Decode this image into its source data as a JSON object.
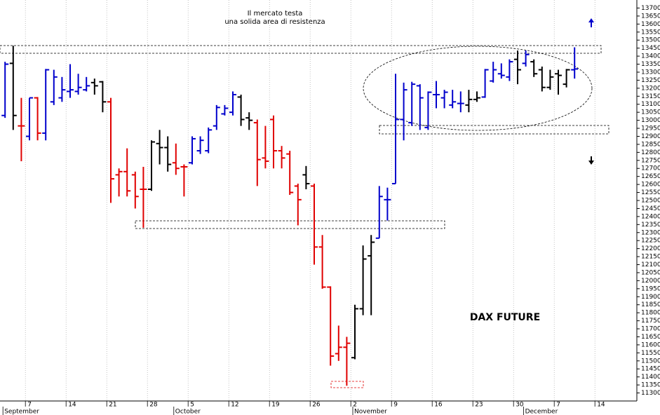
{
  "chart_data": {
    "type": "ohlc",
    "title": "Il mercato testa",
    "subtitle": "una solida area di resistenza",
    "annotations": [
      "DAX FUTURE"
    ],
    "categories": [
      null,
      null,
      null,
      "7",
      null,
      null,
      null,
      null,
      "14",
      null,
      null,
      null,
      null,
      "21",
      null,
      null,
      null,
      null,
      "28",
      null,
      null,
      null,
      null,
      "5",
      null,
      null,
      null,
      null,
      "12",
      null,
      null,
      null,
      null,
      "19",
      null,
      null,
      null,
      null,
      "26",
      null,
      null,
      null,
      null,
      "2",
      null,
      null,
      null,
      null,
      "9",
      null,
      null,
      null,
      null,
      "16",
      null,
      null,
      null,
      null,
      "23",
      null,
      null,
      null,
      null,
      "30",
      null,
      null,
      null,
      null,
      "7",
      null,
      null,
      null,
      null,
      "14"
    ],
    "months": [
      "September",
      null,
      null,
      null,
      null,
      null,
      null,
      null,
      null,
      null,
      null,
      null,
      null,
      null,
      null,
      null,
      null,
      null,
      null,
      null,
      null,
      "October",
      null,
      null,
      null,
      null,
      null,
      null,
      null,
      null,
      null,
      null,
      null,
      null,
      null,
      null,
      null,
      null,
      null,
      null,
      null,
      null,
      null,
      "November",
      null,
      null,
      null,
      null,
      null,
      null,
      null,
      null,
      null,
      null,
      null,
      null,
      null,
      null,
      null,
      null,
      null,
      null,
      null,
      null,
      "December",
      null,
      null,
      null,
      null,
      null,
      null,
      null,
      null,
      null
    ],
    "open": [
      13030,
      13355,
      12965,
      12900,
      13140,
      12920,
      13115,
      13140,
      13180,
      13180,
      13190,
      13235,
      13240,
      13115,
      12660,
      12680,
      12660,
      12570,
      12570,
      12855,
      12830,
      12735,
      12710,
      12735,
      12810,
      12810,
      12965,
      13040,
      13050,
      13145,
      13015,
      12985,
      12765,
      13005,
      12810,
      12790,
      12590,
      12660,
      12590,
      12210,
      11960,
      11545,
      11585,
      11520,
      11825,
      12155,
      12265,
      12505,
      12605,
      13005,
      12985,
      13215,
      12955,
      13160,
      13140,
      13095,
      13105,
      13095,
      13130,
      13145,
      13245,
      13290,
      13270,
      13380,
      13355,
      13365,
      13315,
      13205,
      13290,
      13225,
      13315,
      null,
      null,
      null
    ],
    "high": [
      13365,
      13465,
      13140,
      13140,
      13145,
      13320,
      13315,
      13270,
      13350,
      13290,
      13270,
      13260,
      13245,
      13140,
      12700,
      12825,
      12680,
      12710,
      12875,
      12940,
      12900,
      12855,
      12725,
      12900,
      12900,
      12955,
      13095,
      13095,
      13180,
      13160,
      13050,
      13005,
      12965,
      13030,
      12840,
      12810,
      12605,
      12715,
      12605,
      12285,
      11965,
      11720,
      11650,
      11850,
      12220,
      12285,
      12590,
      12580,
      13290,
      13235,
      13240,
      13225,
      13180,
      13245,
      13190,
      13190,
      13180,
      13190,
      13180,
      13320,
      13365,
      13355,
      13380,
      13435,
      13435,
      13380,
      13335,
      13315,
      13315,
      13320,
      13455,
      null,
      null,
      null
    ],
    "low": [
      13015,
      12940,
      12745,
      12875,
      12875,
      12875,
      13095,
      13115,
      13140,
      13160,
      13180,
      13160,
      13050,
      12485,
      12525,
      12525,
      12450,
      12330,
      12560,
      12725,
      12680,
      12660,
      12525,
      12725,
      12790,
      12795,
      12940,
      13030,
      13030,
      12965,
      12940,
      12590,
      12700,
      12700,
      12700,
      12535,
      12345,
      12570,
      12100,
      11950,
      11470,
      11500,
      11345,
      11510,
      11785,
      11785,
      12265,
      12375,
      12605,
      12875,
      12965,
      12940,
      12940,
      13075,
      13075,
      13075,
      13050,
      13050,
      13115,
      13140,
      13235,
      13260,
      13245,
      13225,
      13335,
      13270,
      13180,
      13190,
      13160,
      13205,
      13260,
      null,
      null,
      null
    ],
    "close": [
      13350,
      13030,
      12965,
      13140,
      12920,
      13315,
      13270,
      13190,
      13190,
      13205,
      13215,
      13215,
      13115,
      12635,
      12680,
      12560,
      12525,
      12570,
      12865,
      12830,
      12725,
      12700,
      12710,
      12885,
      12875,
      12940,
      13080,
      13075,
      13160,
      13005,
      13000,
      12755,
      12745,
      12810,
      12765,
      12550,
      12505,
      12605,
      12210,
      11960,
      11530,
      11585,
      11610,
      11825,
      12135,
      12240,
      12525,
      12505,
      13005,
      13190,
      13225,
      13140,
      13175,
      13160,
      13175,
      13115,
      13105,
      13130,
      13140,
      13315,
      13315,
      13280,
      13365,
      13315,
      13410,
      13290,
      13205,
      13270,
      13280,
      13315,
      13320,
      null,
      null,
      null
    ],
    "colors": [
      "#0000cc",
      "#000000",
      "#e00000",
      "#0000cc",
      "#e00000",
      "#0000cc",
      "#0000cc",
      "#0000cc",
      "#0000cc",
      "#0000cc",
      "#0000cc",
      "#000000",
      "#000000",
      "#e00000",
      "#e00000",
      "#e00000",
      "#e00000",
      "#e00000",
      "#000000",
      "#000000",
      "#000000",
      "#e00000",
      "#e00000",
      "#0000cc",
      "#0000cc",
      "#0000cc",
      "#0000cc",
      "#0000cc",
      "#0000cc",
      "#000000",
      "#000000",
      "#e00000",
      "#e00000",
      "#e00000",
      "#e00000",
      "#e00000",
      "#e00000",
      "#000000",
      "#e00000",
      "#e00000",
      "#e00000",
      "#e00000",
      "#e00000",
      "#000000",
      "#000000",
      "#000000",
      "#0000cc",
      "#0000cc",
      "#0000cc",
      "#0000cc",
      "#0000cc",
      "#0000cc",
      "#0000cc",
      "#0000cc",
      "#0000cc",
      "#0000cc",
      "#0000cc",
      "#000000",
      "#000000",
      "#0000cc",
      "#0000cc",
      "#0000cc",
      "#0000cc",
      "#000000",
      "#0000cc",
      "#000000",
      "#000000",
      "#000000",
      "#000000",
      "#000000",
      "#0000cc",
      null,
      null,
      null
    ],
    "ylim": [
      11250,
      13750
    ],
    "yticks": [
      11300,
      11350,
      11400,
      11450,
      11500,
      11550,
      11600,
      11650,
      11700,
      11750,
      11800,
      11850,
      11900,
      11950,
      12000,
      12050,
      12100,
      12150,
      12200,
      12250,
      12300,
      12350,
      12400,
      12450,
      12500,
      12550,
      12600,
      12650,
      12700,
      12750,
      12800,
      12850,
      12900,
      12950,
      13000,
      13050,
      13100,
      13150,
      13200,
      13250,
      13300,
      13350,
      13400,
      13450,
      13500,
      13550,
      13600,
      13650,
      13700
    ],
    "grid": true
  }
}
